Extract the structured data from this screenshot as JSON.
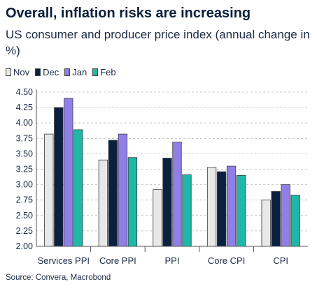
{
  "title": "Overall, inflation risks are increasing",
  "subtitle": "US consumer and producer price index (annual change in %)",
  "source": "Source: Convera, Macrobond",
  "chart_data": {
    "type": "bar",
    "categories": [
      "Services PPI",
      "Core PPI",
      "PPI",
      "Core CPI",
      "CPI"
    ],
    "series": [
      {
        "name": "Nov",
        "color": "#e8e8e8",
        "values": [
          3.82,
          3.4,
          2.92,
          3.28,
          2.75
        ]
      },
      {
        "name": "Dec",
        "color": "#0b2040",
        "values": [
          4.25,
          3.72,
          3.43,
          3.21,
          2.89
        ]
      },
      {
        "name": "Jan",
        "color": "#8f7fe6",
        "values": [
          4.4,
          3.82,
          3.69,
          3.3,
          3.0
        ]
      },
      {
        "name": "Feb",
        "color": "#1fb8a8",
        "values": [
          3.89,
          3.44,
          3.16,
          3.15,
          2.83
        ]
      }
    ],
    "ylim": [
      2.0,
      4.5
    ],
    "yticks": [
      "2.00",
      "2.25",
      "2.50",
      "2.75",
      "3.00",
      "3.25",
      "3.50",
      "3.75",
      "4.00",
      "4.25",
      "4.50"
    ],
    "grid": true,
    "legend": "top-left"
  }
}
